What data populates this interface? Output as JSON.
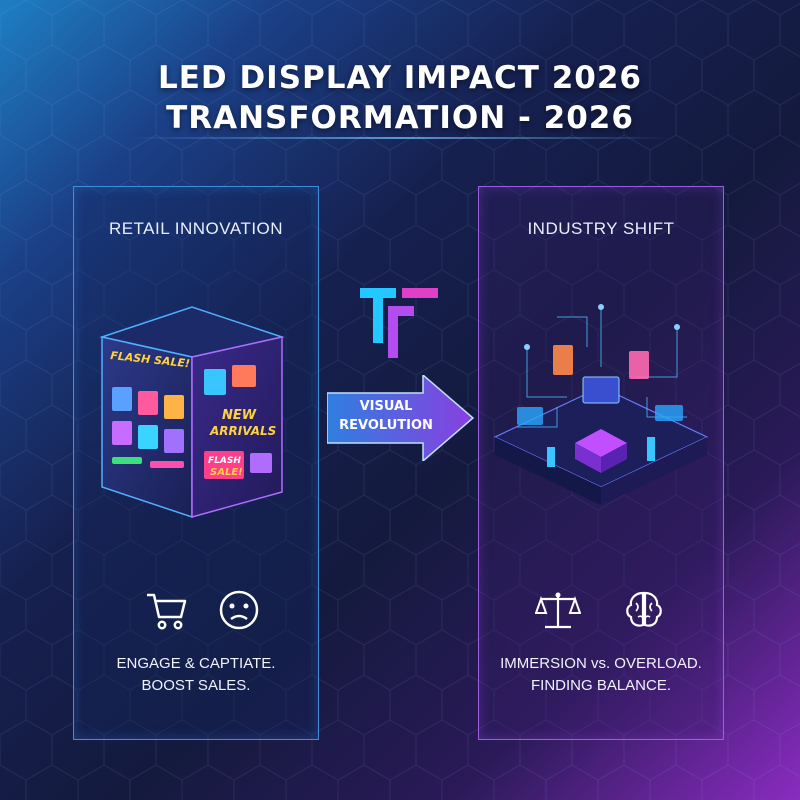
{
  "title": {
    "line1": "LED DISPLAY IMPACT 2026",
    "line2": "TRANSFORMATION - 2026"
  },
  "colors": {
    "accent_blue": "#3f8ed8",
    "accent_purple": "#9a5fe0",
    "arrow_blue": "#2f7fe0",
    "arrow_purple": "#8a3fe0",
    "logo_cyan": "#22c8ff",
    "logo_magenta": "#e040c8"
  },
  "left_panel": {
    "title": "RETAIL INNOVATION",
    "display_labels": {
      "flash_sale": "FLASH SALE!",
      "new_arrivals_1": "NEW",
      "new_arrivals_2": "ARRIVALS",
      "flash_sale_small_1": "FLASH",
      "flash_sale_small_2": "SALE!"
    },
    "icons": [
      "shopping-cart-icon",
      "confused-face-icon"
    ],
    "caption_line1": "ENGAGE & CAPTIATE.",
    "caption_line2": "BOOST SALES."
  },
  "center": {
    "logo": "T-logo-icon",
    "arrow_line1": "VISUAL",
    "arrow_line2": "REVOLUTION"
  },
  "right_panel": {
    "title": "INDUSTRY SHIFT",
    "icons": [
      "balance-scale-icon",
      "brain-icon"
    ],
    "caption_line1": "IMMERSION vs. OVERLOAD.",
    "caption_line2": "FINDING BALANCE."
  }
}
